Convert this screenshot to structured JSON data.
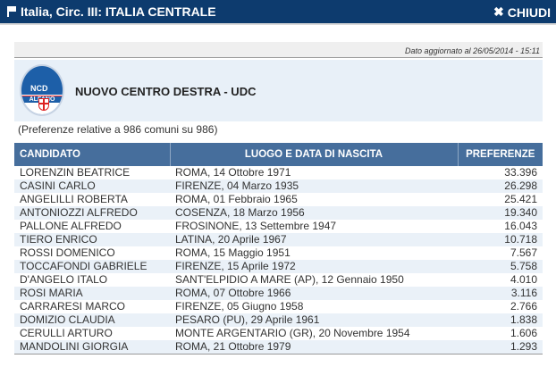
{
  "header": {
    "title": "Italia, Circ. III: ITALIA CENTRALE",
    "close_label": "CHIUDI"
  },
  "updated": "Dato aggiornato al 26/05/2014 - 15:11",
  "party": {
    "name": "NUOVO CENTRO DESTRA - UDC",
    "logo_text": "NCD ALFANO"
  },
  "note": "(Preferenze relative a 986 comuni su 986)",
  "table": {
    "columns": [
      "CANDIDATO",
      "LUOGO E DATA DI NASCITA",
      "PREFERENZE"
    ],
    "rows": [
      [
        "LORENZIN BEATRICE",
        "ROMA,  14  Ottobre 1971",
        "33.396"
      ],
      [
        "CASINI CARLO",
        "FIRENZE,  04  Marzo 1935",
        "26.298"
      ],
      [
        "ANGELILLI ROBERTA",
        "ROMA,  01  Febbraio 1965",
        "25.421"
      ],
      [
        "ANTONIOZZI ALFREDO",
        "COSENZA,  18  Marzo 1956",
        "19.340"
      ],
      [
        "PALLONE ALFREDO",
        "FROSINONE,  13  Settembre 1947",
        "16.043"
      ],
      [
        "TIERO ENRICO",
        "LATINA,  20  Aprile 1967",
        "10.718"
      ],
      [
        "ROSSI DOMENICO",
        "ROMA,  15  Maggio 1951",
        "7.567"
      ],
      [
        "TOCCAFONDI GABRIELE",
        "FIRENZE,  15  Aprile 1972",
        "5.758"
      ],
      [
        "D'ANGELO ITALO",
        "SANT'ELPIDIO A MARE (AP),  12  Gennaio 1950",
        "4.010"
      ],
      [
        "ROSI MARIA",
        "ROMA,  07  Ottobre 1966",
        "3.116"
      ],
      [
        "CARRARESI MARCO",
        "FIRENZE,  05  Giugno 1958",
        "2.766"
      ],
      [
        "DOMIZIO CLAUDIA",
        "PESARO (PU),  29  Aprile 1961",
        "1.838"
      ],
      [
        "CERULLI ARTURO",
        "MONTE ARGENTARIO (GR),  20  Novembre 1954",
        "1.606"
      ],
      [
        "MANDOLINI GIORGIA",
        "ROMA,  21  Ottobre 1979",
        "1.293"
      ]
    ]
  }
}
